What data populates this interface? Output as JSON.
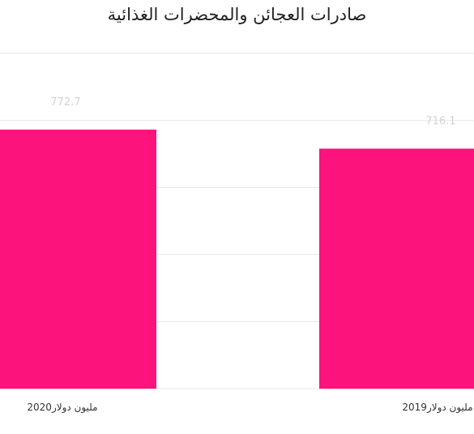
{
  "chart_data": {
    "type": "bar",
    "title": "صادرات العجائن والمحضرات الغذائية",
    "xlabel": "",
    "ylabel": "",
    "categories": [
      "مليون دولار2020",
      "مليون دولار2019"
    ],
    "series": [
      {
        "values": [
          772.7,
          716.1
        ],
        "color": "#fc137c"
      }
    ],
    "data_labels": [
      "772.7",
      "716.1"
    ],
    "ylim": [
      0,
      1000
    ],
    "grid": true,
    "legend": "none",
    "axis_direction": "rtl",
    "colors": {
      "bar": "#fc137c",
      "grid": "#e6e6e6",
      "value_label": "#d3d3d3",
      "title": "#222222"
    }
  }
}
